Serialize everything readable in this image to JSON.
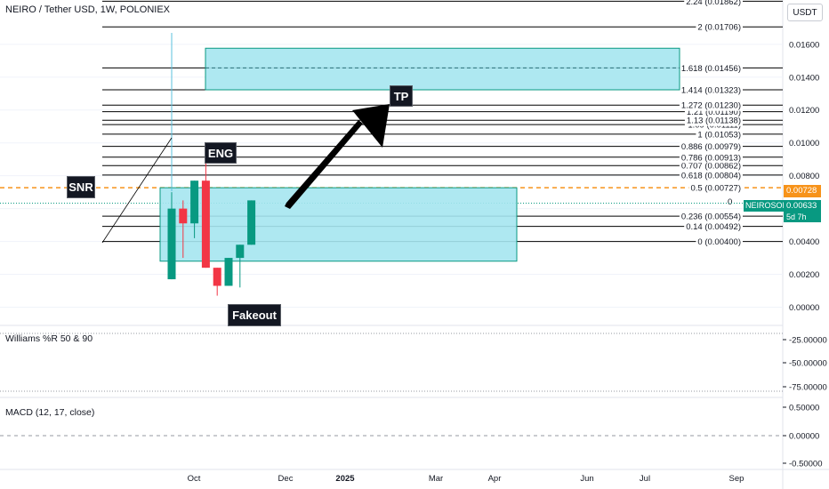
{
  "header": {
    "title": "NEIRO / Tether USD, 1W, POLONIEX",
    "unit_button": "USDT"
  },
  "panes": {
    "williams_title": "Williams %R 50 & 90",
    "macd_title": "MACD (12, 17, close)"
  },
  "labels": {
    "snr": "SNR",
    "eng": "ENG",
    "tp": "TP",
    "fakeout": "Fakeout"
  },
  "price_tags": {
    "current": "0.00728",
    "symbol": "NEIROSOLUSDT",
    "symbol_price": "0.00633",
    "countdown": "5d 7h"
  },
  "colors": {
    "up": "#089981",
    "down": "#f23645",
    "zone_fill": "#a5e6f0",
    "zone_stroke": "#089981",
    "level": "#000000",
    "dashed_level": "#f7931a",
    "axis_text": "#131722"
  },
  "chart_data": {
    "type": "candlestick",
    "title": "NEIRO / Tether USD, 1W, POLONIEX",
    "x_tick_labels": [
      "Oct",
      "Dec",
      "2025",
      "Mar",
      "Apr",
      "Jun",
      "Jul",
      "Sep"
    ],
    "y_tick_labels": [
      "0.01600",
      "0.01400",
      "0.01200",
      "0.01000",
      "0.00800",
      "0.00600",
      "0.00400",
      "0.00200",
      "0.00000"
    ],
    "ylim": [
      -0.0004,
      0.019
    ],
    "candles": [
      {
        "open": 0.0017,
        "high": 0.007,
        "low": 0.0017,
        "close": 0.006
      },
      {
        "open": 0.006,
        "high": 0.0065,
        "low": 0.003,
        "close": 0.0051
      },
      {
        "open": 0.0051,
        "high": 0.0077,
        "low": 0.0042,
        "close": 0.0077
      },
      {
        "open": 0.0077,
        "high": 0.0088,
        "low": 0.0024,
        "close": 0.0024
      },
      {
        "open": 0.0024,
        "high": 0.0024,
        "low": 0.0007,
        "close": 0.0013
      },
      {
        "open": 0.0013,
        "high": 0.003,
        "low": 0.0013,
        "close": 0.003
      },
      {
        "open": 0.003,
        "high": 0.0038,
        "low": 0.0012,
        "close": 0.0038
      },
      {
        "open": 0.0038,
        "high": 0.0065,
        "low": 0.0038,
        "close": 0.0065
      }
    ],
    "fib_levels": [
      {
        "ratio": "0",
        "price": "0.00400",
        "label": "0 (0.00400)"
      },
      {
        "ratio": "0.14",
        "price": "0.00492",
        "label": "0.14 (0.00492)"
      },
      {
        "ratio": "0.236",
        "price": "0.00554",
        "label": "0.236 (0.00554)"
      },
      {
        "ratio": "0.5",
        "price": "0.00727",
        "label": "0.5 (0.00727)"
      },
      {
        "ratio": "0.618",
        "price": "0.00804",
        "label": "0.618 (0.00804)"
      },
      {
        "ratio": "0.707",
        "price": "0.00862",
        "label": "0.707 (0.00862)"
      },
      {
        "ratio": "0.786",
        "price": "0.00913",
        "label": "0.786 (0.00913)"
      },
      {
        "ratio": "0.886",
        "price": "0.00979",
        "label": "0.886 (0.00979)"
      },
      {
        "ratio": "1",
        "price": "0.01053",
        "label": "1 (0.01053)"
      },
      {
        "ratio": "1.09",
        "price": "0.01111",
        "label": "1.09 (0.01111)"
      },
      {
        "ratio": "1.13",
        "price": "0.01138",
        "label": "1.13 (0.01138)"
      },
      {
        "ratio": "1.21",
        "price": "0.01190",
        "label": "1.21 (0.01190)"
      },
      {
        "ratio": "1.272",
        "price": "0.01230",
        "label": "1.272 (0.01230)"
      },
      {
        "ratio": "1.414",
        "price": "0.01323",
        "label": "1.414 (0.01323)"
      },
      {
        "ratio": "1.618",
        "price": "0.01456",
        "label": "1.618 (0.01456)"
      },
      {
        "ratio": "2",
        "price": "0.01706",
        "label": "2 (0.01706)"
      },
      {
        "ratio": "2.24",
        "price": "0.01862",
        "label": "2.24 (0.01862)"
      }
    ],
    "demand_zone": {
      "top": 0.00727,
      "bottom": 0.0028
    },
    "target_zone": {
      "top": 0.01576,
      "bottom": 0.01323,
      "midline": 0.01456
    },
    "current_price": 0.00728,
    "symbol_price": 0.00633,
    "williams": {
      "title": "Williams %R 50 & 90",
      "tick_labels": [
        "-25.00000",
        "-50.00000",
        "-75.00000"
      ]
    },
    "macd": {
      "title": "MACD (12, 17, close)",
      "tick_labels": [
        "0.50000",
        "0.00000",
        "-0.50000"
      ]
    }
  }
}
